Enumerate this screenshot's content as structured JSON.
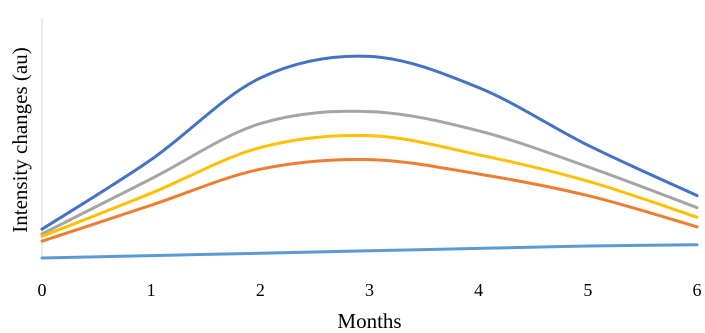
{
  "chart_data": {
    "type": "line",
    "title": "",
    "xlabel": "Months",
    "ylabel": "Intensity changes (au)",
    "x": [
      0,
      1,
      2,
      3,
      4,
      5,
      6
    ],
    "x_ticks": [
      "0",
      "1",
      "2",
      "3",
      "4",
      "5",
      "6"
    ],
    "xlim": [
      0,
      6
    ],
    "ylim": [
      0,
      10
    ],
    "grid": false,
    "legend": "none",
    "smooth": true,
    "series": [
      {
        "color": "#4472C4",
        "values": [
          1.2,
          4.1,
          7.5,
          8.4,
          7.1,
          4.7,
          2.6
        ]
      },
      {
        "color": "#A5A5A5",
        "values": [
          1.0,
          3.3,
          5.6,
          6.1,
          5.3,
          3.8,
          2.1
        ]
      },
      {
        "color": "#FFC000",
        "values": [
          0.9,
          2.7,
          4.6,
          5.1,
          4.3,
          3.2,
          1.7
        ]
      },
      {
        "color": "#ED7D31",
        "values": [
          0.7,
          2.2,
          3.7,
          4.1,
          3.5,
          2.6,
          1.3
        ]
      },
      {
        "color": "#5B9BD5",
        "values": [
          0.0,
          0.1,
          0.2,
          0.3,
          0.4,
          0.5,
          0.55
        ]
      }
    ]
  }
}
